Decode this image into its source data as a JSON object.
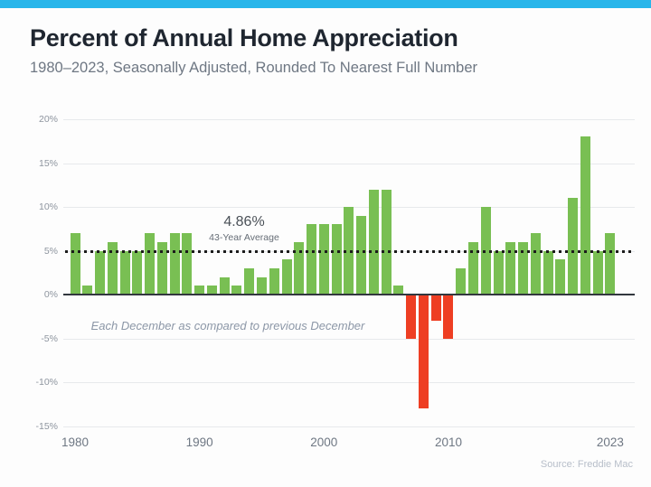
{
  "header": {
    "title": "Percent of Annual Home Appreciation",
    "subtitle": "1980–2023, Seasonally Adjusted, Rounded To Nearest Full Number"
  },
  "chart_data": {
    "type": "bar",
    "title": "Percent of Annual Home Appreciation",
    "subtitle": "1980–2023, Seasonally Adjusted, Rounded To Nearest Full Number",
    "x": [
      1980,
      1981,
      1982,
      1983,
      1984,
      1985,
      1986,
      1987,
      1988,
      1989,
      1990,
      1991,
      1992,
      1993,
      1994,
      1995,
      1996,
      1997,
      1998,
      1999,
      2000,
      2001,
      2002,
      2003,
      2004,
      2005,
      2006,
      2007,
      2008,
      2009,
      2010,
      2011,
      2012,
      2013,
      2014,
      2015,
      2016,
      2017,
      2018,
      2019,
      2020,
      2021,
      2022,
      2023
    ],
    "values": [
      7,
      1,
      5,
      6,
      5,
      5,
      7,
      6,
      7,
      7,
      1,
      1,
      2,
      1,
      3,
      2,
      3,
      4,
      6,
      8,
      8,
      8,
      10,
      9,
      12,
      12,
      1,
      -5,
      -13,
      -3,
      -5,
      3,
      6,
      10,
      5,
      6,
      6,
      7,
      5,
      4,
      11,
      18,
      5,
      7
    ],
    "unit": "%",
    "ylim": [
      -15,
      20
    ],
    "y_ticks": [
      20,
      15,
      10,
      5,
      0,
      -5,
      -10,
      -15
    ],
    "y_tick_labels": [
      "20%",
      "15%",
      "10%",
      "5%",
      "0%",
      "-5%",
      "-10%",
      "-15%"
    ],
    "x_tick_years": [
      1980,
      1990,
      2000,
      2010,
      2023
    ],
    "x_tick_labels": [
      "1980",
      "1990",
      "2000",
      "2010",
      "2023"
    ],
    "average": {
      "value": 4.86,
      "label": "4.86%",
      "sublabel": "43-Year Average"
    },
    "annotation": "Each December as compared to previous December",
    "grid": true,
    "legend": false,
    "colors": {
      "positive_bar": "#79bf53",
      "negative_bar": "#ee3e23",
      "average_line": "#1c1c1c",
      "accent_bar": "#29b6ea"
    }
  },
  "footer": {
    "source": "Source: Freddie Mac"
  }
}
